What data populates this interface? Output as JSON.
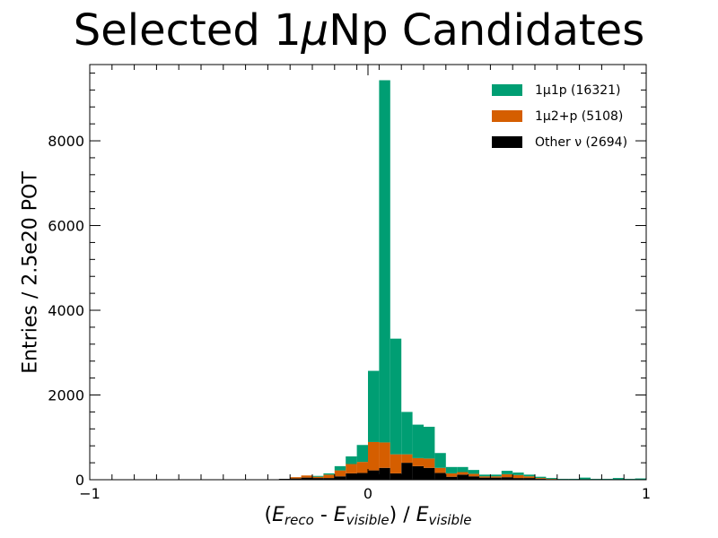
{
  "chart_data": {
    "type": "bar",
    "title_prefix": "Selected 1",
    "title_mu": "μ",
    "title_suffix": "Np Candidates",
    "ylabel": "Entries / 2.5e20 POT",
    "xlabel": {
      "open": "(",
      "e1": "E",
      "sub1": "reco",
      "minus": " - ",
      "e2": "E",
      "sub2": "visible",
      "close": ") / ",
      "e3": "E",
      "sub3": "visible"
    },
    "xlim": [
      -1,
      1
    ],
    "ylim": [
      0,
      9800
    ],
    "bin_width": 0.04,
    "x_ticks": [
      {
        "value": -1,
        "label": "−1"
      },
      {
        "value": 0,
        "label": "0"
      },
      {
        "value": 1,
        "label": "1"
      }
    ],
    "y_ticks": [
      {
        "value": 0,
        "label": "0"
      },
      {
        "value": 2000,
        "label": "2000"
      },
      {
        "value": 4000,
        "label": "4000"
      },
      {
        "value": 6000,
        "label": "6000"
      },
      {
        "value": 8000,
        "label": "8000"
      }
    ],
    "series": [
      {
        "name": "1μ1p (16321)",
        "color": "#009e73",
        "bins": [
          {
            "x": -0.2,
            "value": 20
          },
          {
            "x": -0.16,
            "value": 30
          },
          {
            "x": -0.12,
            "value": 100
          },
          {
            "x": -0.08,
            "value": 180
          },
          {
            "x": -0.04,
            "value": 400
          },
          {
            "x": 0.0,
            "value": 1680
          },
          {
            "x": 0.04,
            "value": 8550
          },
          {
            "x": 0.08,
            "value": 2730
          },
          {
            "x": 0.12,
            "value": 1000
          },
          {
            "x": 0.16,
            "value": 790
          },
          {
            "x": 0.2,
            "value": 750
          },
          {
            "x": 0.24,
            "value": 350
          },
          {
            "x": 0.28,
            "value": 150
          },
          {
            "x": 0.32,
            "value": 120
          },
          {
            "x": 0.36,
            "value": 90
          },
          {
            "x": 0.4,
            "value": 40
          },
          {
            "x": 0.44,
            "value": 40
          },
          {
            "x": 0.48,
            "value": 80
          },
          {
            "x": 0.52,
            "value": 60
          },
          {
            "x": 0.56,
            "value": 40
          },
          {
            "x": 0.6,
            "value": 30
          },
          {
            "x": 0.64,
            "value": 20
          },
          {
            "x": 0.68,
            "value": 20
          },
          {
            "x": 0.72,
            "value": 20
          },
          {
            "x": 0.76,
            "value": 50
          },
          {
            "x": 0.8,
            "value": 20
          },
          {
            "x": 0.84,
            "value": 20
          },
          {
            "x": 0.88,
            "value": 40
          },
          {
            "x": 0.92,
            "value": 20
          },
          {
            "x": 0.96,
            "value": 30
          }
        ]
      },
      {
        "name": "1μ2+p (5108)",
        "color": "#d55e00",
        "bins": [
          {
            "x": -0.28,
            "value": 30
          },
          {
            "x": -0.24,
            "value": 50
          },
          {
            "x": -0.2,
            "value": 30
          },
          {
            "x": -0.16,
            "value": 80
          },
          {
            "x": -0.12,
            "value": 140
          },
          {
            "x": -0.08,
            "value": 220
          },
          {
            "x": -0.04,
            "value": 260
          },
          {
            "x": 0.0,
            "value": 670
          },
          {
            "x": 0.04,
            "value": 600
          },
          {
            "x": 0.08,
            "value": 450
          },
          {
            "x": 0.12,
            "value": 200
          },
          {
            "x": 0.16,
            "value": 190
          },
          {
            "x": 0.2,
            "value": 220
          },
          {
            "x": 0.24,
            "value": 120
          },
          {
            "x": 0.28,
            "value": 80
          },
          {
            "x": 0.32,
            "value": 60
          },
          {
            "x": 0.36,
            "value": 60
          },
          {
            "x": 0.4,
            "value": 30
          },
          {
            "x": 0.44,
            "value": 30
          },
          {
            "x": 0.48,
            "value": 70
          },
          {
            "x": 0.52,
            "value": 70
          },
          {
            "x": 0.56,
            "value": 40
          },
          {
            "x": 0.6,
            "value": 20
          },
          {
            "x": 0.64,
            "value": 10
          }
        ]
      },
      {
        "name": "Other ν (2694)",
        "color": "#000000",
        "bins": [
          {
            "x": -0.32,
            "value": 20
          },
          {
            "x": -0.28,
            "value": 30
          },
          {
            "x": -0.24,
            "value": 50
          },
          {
            "x": -0.2,
            "value": 40
          },
          {
            "x": -0.16,
            "value": 40
          },
          {
            "x": -0.12,
            "value": 80
          },
          {
            "x": -0.08,
            "value": 150
          },
          {
            "x": -0.04,
            "value": 160
          },
          {
            "x": 0.0,
            "value": 220
          },
          {
            "x": 0.04,
            "value": 280
          },
          {
            "x": 0.08,
            "value": 150
          },
          {
            "x": 0.12,
            "value": 400
          },
          {
            "x": 0.16,
            "value": 320
          },
          {
            "x": 0.2,
            "value": 280
          },
          {
            "x": 0.24,
            "value": 160
          },
          {
            "x": 0.28,
            "value": 70
          },
          {
            "x": 0.32,
            "value": 120
          },
          {
            "x": 0.36,
            "value": 80
          },
          {
            "x": 0.4,
            "value": 50
          },
          {
            "x": 0.44,
            "value": 50
          },
          {
            "x": 0.48,
            "value": 60
          },
          {
            "x": 0.52,
            "value": 40
          },
          {
            "x": 0.56,
            "value": 40
          },
          {
            "x": 0.6,
            "value": 20
          },
          {
            "x": 0.64,
            "value": 10
          }
        ]
      }
    ],
    "legend": {
      "position": "top-right",
      "frame": false,
      "order": [
        0,
        1,
        2
      ]
    },
    "grid": false,
    "stacked": true,
    "stack_order": [
      2,
      1,
      0
    ]
  }
}
